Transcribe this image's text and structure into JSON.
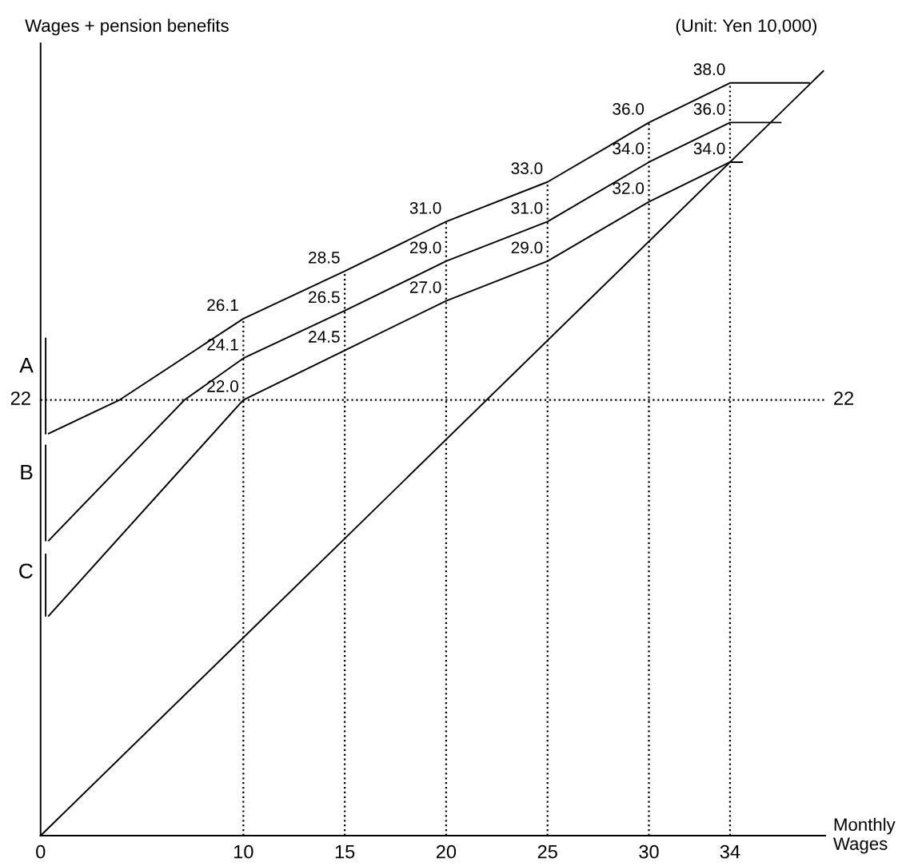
{
  "chart_data": {
    "type": "line",
    "xlabel": "Monthly\nWages",
    "ylabel": "Wages + pension benefits",
    "annotations": [
      "(Unit: Yen 10,000)"
    ],
    "xlim": [
      0,
      38.7
    ],
    "ylim": [
      0,
      40
    ],
    "xticks": [
      0,
      10,
      15,
      20,
      25,
      30,
      34
    ],
    "grid": false,
    "legend": false,
    "marker": "none",
    "line_style": "solid",
    "series": [
      {
        "color": "#000000",
        "x": [
          0.4,
          3.9,
          10,
          15,
          20,
          25,
          30,
          34,
          37.9
        ],
        "values": [
          20.3,
          22,
          26.1,
          28.5,
          31.0,
          33.0,
          36.0,
          38.0,
          38.0
        ],
        "value_labels": [
          null,
          null,
          "26.1",
          "28.5",
          "31.0",
          "33.0",
          "36.0",
          "38.0",
          null
        ]
      },
      {
        "color": "#000000",
        "x": [
          0.4,
          7.1,
          10,
          15,
          20,
          25,
          30,
          34,
          36.5
        ],
        "values": [
          14.9,
          22,
          24.1,
          26.5,
          29.0,
          31.0,
          34.0,
          36.0,
          36.0
        ],
        "value_labels": [
          null,
          null,
          "24.1",
          "26.5",
          "29.0",
          "31.0",
          "34.0",
          "36.0",
          null
        ]
      },
      {
        "color": "#000000",
        "x": [
          0.4,
          10,
          15,
          20,
          25,
          30,
          34,
          34.6
        ],
        "values": [
          11.1,
          22.0,
          24.5,
          27.0,
          29.0,
          32.0,
          34.0,
          34.0
        ],
        "value_labels": [
          null,
          "22.0",
          "24.5",
          "27.0",
          "29.0",
          "32.0",
          "34.0",
          null
        ]
      },
      {
        "color": "#000000",
        "x": [
          0,
          38.6
        ],
        "values": [
          0,
          38.6
        ]
      },
      {
        "name": "A",
        "color": "#000000",
        "x": [
          0.25,
          0.25
        ],
        "values": [
          25.1,
          20.3
        ]
      },
      {
        "name": "B",
        "color": "#000000",
        "x": [
          0.25,
          0.25
        ],
        "values": [
          19.7,
          14.9
        ]
      },
      {
        "name": "C",
        "color": "#000000",
        "x": [
          0.25,
          0.25
        ],
        "values": [
          14.2,
          11.1
        ]
      }
    ],
    "ref_lines": [
      {
        "axis": "y",
        "value": 22,
        "label": "22",
        "line_style": "dotted"
      },
      {
        "axis": "x",
        "value": 10,
        "line_style": "dotted"
      },
      {
        "axis": "x",
        "value": 15,
        "line_style": "dotted"
      },
      {
        "axis": "x",
        "value": 20,
        "line_style": "dotted"
      },
      {
        "axis": "x",
        "value": 25,
        "line_style": "dotted"
      },
      {
        "axis": "x",
        "value": 30,
        "line_style": "dotted"
      },
      {
        "axis": "x",
        "value": 34,
        "line_style": "dotted"
      }
    ]
  }
}
